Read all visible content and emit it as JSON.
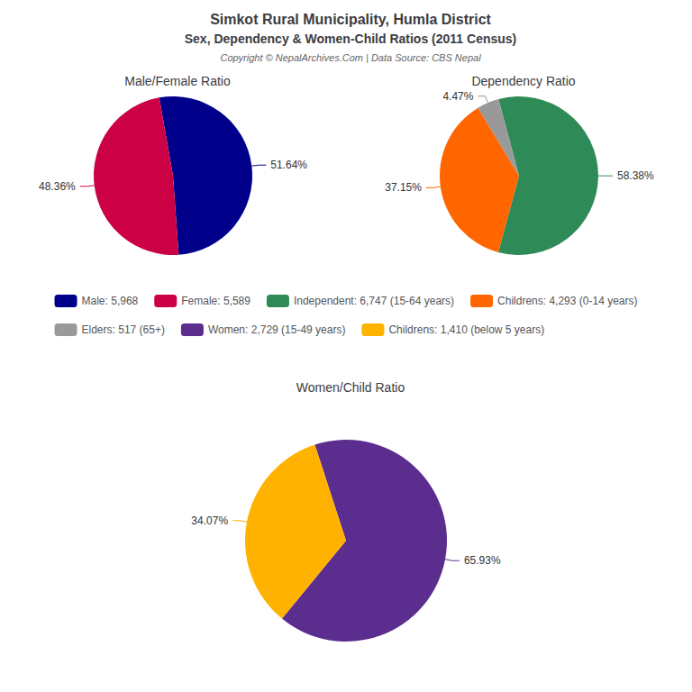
{
  "title": "Simkot Rural Municipality, Humla District",
  "subtitle": "Sex, Dependency & Women-Child Ratios (2011 Census)",
  "annotations": [
    "Copyright © NepalArchives.Com | Data Source: CBS Nepal"
  ],
  "legend": "center",
  "chart_data": [
    {
      "type": "pie",
      "title": "Male/Female Ratio",
      "categories": [
        "Male: 5,968",
        "Female: 5,589"
      ],
      "values": [
        51.64,
        48.36
      ],
      "value_labels": [
        "51.64%",
        "48.36%"
      ],
      "colors": [
        "#00008B",
        "#CC0044"
      ],
      "data_labels": true
    },
    {
      "type": "pie",
      "title": "Dependency Ratio",
      "categories": [
        "Independent: 6,747 (15-64 years)",
        "Childrens: 4,293 (0-14 years)",
        "Elders: 517 (65+)"
      ],
      "values": [
        58.38,
        37.15,
        4.47
      ],
      "value_labels": [
        "58.38%",
        "37.15%",
        "4.47%"
      ],
      "colors": [
        "#2E8B57",
        "#FF6600",
        "#999999"
      ],
      "data_labels": true
    },
    {
      "type": "pie",
      "title": "Women/Child Ratio",
      "categories": [
        "Women: 2,729 (15-49 years)",
        "Childrens: 1,410 (below 5 years)"
      ],
      "values": [
        65.93,
        34.07
      ],
      "value_labels": [
        "65.93%",
        "34.07%"
      ],
      "colors": [
        "#5B2D8E",
        "#FFB300"
      ],
      "data_labels": true
    }
  ]
}
